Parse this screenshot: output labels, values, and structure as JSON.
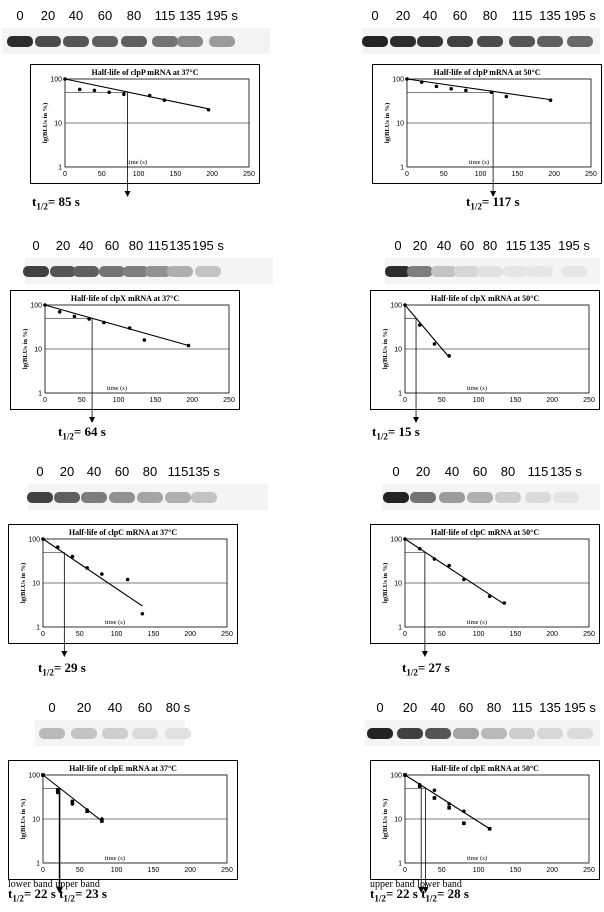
{
  "panels": [
    {
      "id": "clpP_37",
      "title": "Half-life of clpP mRNA at 37°C",
      "gene": "clpP",
      "temp": "37°C",
      "time_labels": [
        "0",
        "20",
        "40",
        "60",
        "80",
        "115",
        "135",
        "195 s"
      ],
      "result_label": "t",
      "result_sub": "1/2",
      "result_value": "= 85 s"
    },
    {
      "id": "clpP_50",
      "title": "Half-life of clpP mRNA at 50°C",
      "gene": "clpP",
      "temp": "50°C",
      "time_labels": [
        "0",
        "20",
        "40",
        "60",
        "80",
        "115",
        "135",
        "195 s"
      ],
      "result_label": "t",
      "result_sub": "1/2",
      "result_value": "= 117 s"
    },
    {
      "id": "clpX_37",
      "title": "Half-life of clpX mRNA at 37°C",
      "gene": "clpX",
      "temp": "37°C",
      "time_labels": [
        "0",
        "20",
        "40",
        "60",
        "80",
        "115",
        "135",
        "195 s"
      ],
      "result_label": "t",
      "result_sub": "1/2",
      "result_value": "= 64 s"
    },
    {
      "id": "clpX_50",
      "title": "Half-life of clpX mRNA at 50°C",
      "gene": "clpX",
      "temp": "50°C",
      "time_labels": [
        "0",
        "20",
        "40",
        "60",
        "80",
        "115",
        "135",
        "195 s"
      ],
      "result_label": "t",
      "result_sub": "1/2",
      "result_value": "= 15 s"
    },
    {
      "id": "clpC_37",
      "title": "Half-life of clpC mRNA at 37°C",
      "gene": "clpC",
      "temp": "37°C",
      "time_labels": [
        "0",
        "20",
        "40",
        "60",
        "80",
        "115",
        "135 s"
      ],
      "result_label": "t",
      "result_sub": "1/2",
      "result_value": "= 29 s"
    },
    {
      "id": "clpC_50",
      "title": "Half-life of clpC mRNA at 50°C",
      "gene": "clpC",
      "temp": "50°C",
      "time_labels": [
        "0",
        "20",
        "40",
        "60",
        "80",
        "115",
        "135 s"
      ],
      "result_label": "t",
      "result_sub": "1/2",
      "result_value": "= 27 s"
    },
    {
      "id": "clpE_37",
      "title": "Half-life of clpE mRNA at 37°C",
      "gene": "clpE",
      "temp": "37°C",
      "time_labels": [
        "0",
        "20",
        "40",
        "60",
        "80 s"
      ],
      "band_labels": [
        "lower band",
        "upper band"
      ],
      "result_a": "= 22 s",
      "result_b": "= 23 s",
      "result_label": "t",
      "result_sub": "1/2"
    },
    {
      "id": "clpE_50",
      "title": "Half-life of clpE mRNA at 50°C",
      "gene": "clpE",
      "temp": "50°C",
      "time_labels": [
        "0",
        "20",
        "40",
        "60",
        "80",
        "115",
        "135",
        "195 s"
      ],
      "band_labels": [
        "upper band",
        "lower band"
      ],
      "result_a": "= 22 s",
      "result_b": "= 28 s",
      "result_label": "t",
      "result_sub": "1/2"
    }
  ],
  "axis": {
    "ylabel": "lg(BLUs in %)",
    "xlabel": "time (s)",
    "yticks": [
      "1",
      "10",
      "100"
    ],
    "xticks": [
      "0",
      "50",
      "100",
      "150",
      "200",
      "250"
    ]
  },
  "chart_data": [
    {
      "type": "scatter",
      "title": "Half-life of clpP mRNA at 37°C",
      "xlabel": "time (s)",
      "ylabel": "lg(BLUs in %)",
      "yscale": "log",
      "xlim": [
        0,
        250
      ],
      "ylim": [
        1,
        100
      ],
      "x": [
        0,
        20,
        40,
        60,
        80,
        115,
        135,
        195
      ],
      "y": [
        100,
        58,
        55,
        50,
        45,
        42,
        33,
        20
      ],
      "half_life": 85,
      "fit": [
        [
          0,
          100
        ],
        [
          195,
          21
        ]
      ]
    },
    {
      "type": "scatter",
      "title": "Half-life of clpP mRNA at 50°C",
      "xlabel": "time (s)",
      "ylabel": "lg(BLUs in %)",
      "yscale": "log",
      "xlim": [
        0,
        250
      ],
      "ylim": [
        1,
        100
      ],
      "x": [
        0,
        20,
        40,
        60,
        80,
        115,
        135,
        195
      ],
      "y": [
        100,
        85,
        68,
        60,
        55,
        50,
        40,
        33
      ],
      "half_life": 117,
      "fit": [
        [
          0,
          100
        ],
        [
          195,
          34
        ]
      ]
    },
    {
      "type": "scatter",
      "title": "Half-life of clpX mRNA at 37°C",
      "xlabel": "time (s)",
      "ylabel": "lg(BLUs in %)",
      "yscale": "log",
      "xlim": [
        0,
        250
      ],
      "ylim": [
        1,
        100
      ],
      "x": [
        0,
        20,
        40,
        60,
        80,
        115,
        135,
        195
      ],
      "y": [
        100,
        70,
        55,
        48,
        40,
        30,
        16,
        12
      ],
      "half_life": 64,
      "fit": [
        [
          0,
          100
        ],
        [
          195,
          12
        ]
      ]
    },
    {
      "type": "scatter",
      "title": "Half-life of clpX mRNA at 50°C",
      "xlabel": "time (s)",
      "ylabel": "lg(BLUs in %)",
      "yscale": "log",
      "xlim": [
        0,
        250
      ],
      "ylim": [
        1,
        100
      ],
      "x": [
        0,
        20,
        40,
        60
      ],
      "y": [
        100,
        35,
        13,
        7
      ],
      "half_life": 15,
      "fit": [
        [
          0,
          100
        ],
        [
          60,
          6.5
        ]
      ]
    },
    {
      "type": "scatter",
      "title": "Half-life of clpC mRNA at 37°C",
      "xlabel": "time (s)",
      "ylabel": "lg(BLUs in %)",
      "yscale": "log",
      "xlim": [
        0,
        250
      ],
      "ylim": [
        1,
        100
      ],
      "x": [
        0,
        20,
        40,
        60,
        80,
        115,
        135
      ],
      "y": [
        100,
        65,
        40,
        22,
        16,
        12,
        2
      ],
      "half_life": 29,
      "fit": [
        [
          0,
          100
        ],
        [
          135,
          3
        ]
      ]
    },
    {
      "type": "scatter",
      "title": "Half-life of clpC mRNA at 50°C",
      "xlabel": "time (s)",
      "ylabel": "lg(BLUs in %)",
      "yscale": "log",
      "xlim": [
        0,
        250
      ],
      "ylim": [
        1,
        100
      ],
      "x": [
        0,
        20,
        40,
        60,
        80,
        115,
        135
      ],
      "y": [
        100,
        60,
        35,
        25,
        12,
        5,
        3.5
      ],
      "half_life": 27,
      "fit": [
        [
          0,
          100
        ],
        [
          135,
          3.3
        ]
      ]
    },
    {
      "type": "scatter",
      "title": "Half-life of clpE mRNA at 37°C",
      "xlabel": "time (s)",
      "ylabel": "lg(BLUs in %)",
      "yscale": "log",
      "xlim": [
        0,
        250
      ],
      "ylim": [
        1,
        100
      ],
      "series": [
        {
          "name": "lower band",
          "x": [
            0,
            20,
            40,
            60,
            80
          ],
          "y": [
            100,
            40,
            22,
            16,
            10
          ],
          "half_life": 22
        },
        {
          "name": "upper band",
          "x": [
            0,
            20,
            40,
            60,
            80
          ],
          "y": [
            100,
            45,
            25,
            15,
            9
          ],
          "half_life": 23
        }
      ],
      "fit": [
        [
          0,
          100
        ],
        [
          80,
          9
        ]
      ]
    },
    {
      "type": "scatter",
      "title": "Half-life of clpE mRNA at 50°C",
      "xlabel": "time (s)",
      "ylabel": "lg(BLUs in %)",
      "yscale": "log",
      "xlim": [
        0,
        250
      ],
      "ylim": [
        1,
        100
      ],
      "series": [
        {
          "name": "upper band",
          "x": [
            0,
            20,
            40,
            60,
            80,
            115
          ],
          "y": [
            100,
            60,
            45,
            22,
            15,
            6
          ],
          "half_life": 22
        },
        {
          "name": "lower band",
          "x": [
            0,
            20,
            40,
            60,
            80,
            115
          ],
          "y": [
            100,
            55,
            30,
            18,
            8,
            6
          ],
          "half_life": 28
        }
      ],
      "fit": [
        [
          0,
          100
        ],
        [
          115,
          6
        ]
      ]
    }
  ]
}
